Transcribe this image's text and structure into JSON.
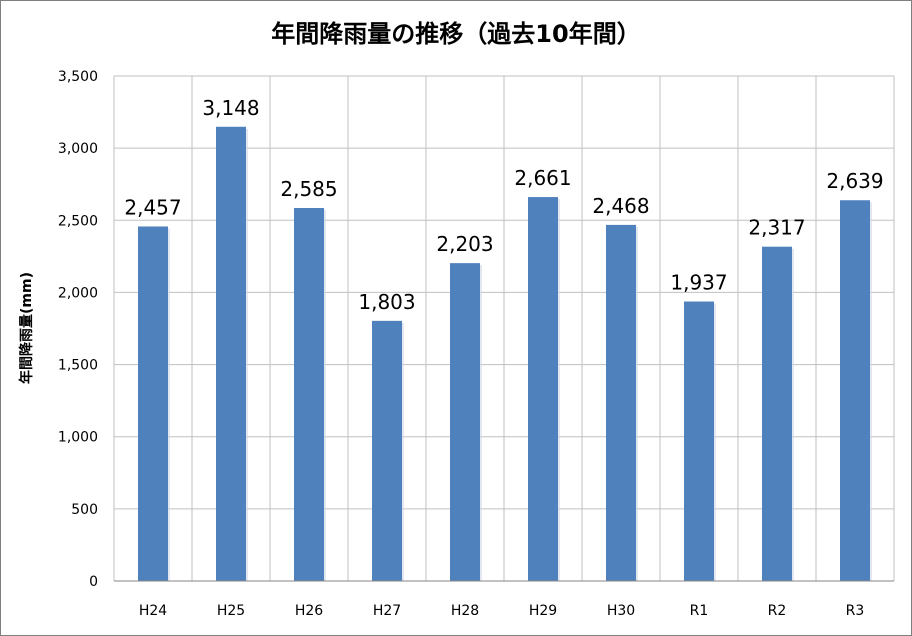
{
  "chart_data": {
    "type": "bar",
    "title": "年間降雨量の推移（過去10年間）",
    "ylabel": "年間降雨量(mm)",
    "xlabel": "",
    "categories": [
      "H24",
      "H25",
      "H26",
      "H27",
      "H28",
      "H29",
      "H30",
      "R1",
      "R2",
      "R3"
    ],
    "values": [
      2457,
      3148,
      2585,
      1803,
      2203,
      2661,
      2468,
      1937,
      2317,
      2639
    ],
    "value_labels": [
      "2,457",
      "3,148",
      "2,585",
      "1,803",
      "2,203",
      "2,661",
      "2,468",
      "1,937",
      "2,317",
      "2,639"
    ],
    "ylim": [
      0,
      3500
    ],
    "yticks": [
      0,
      500,
      1000,
      1500,
      2000,
      2500,
      3000,
      3500
    ],
    "ytick_labels": [
      "0",
      "500",
      "1,000",
      "1,500",
      "2,000",
      "2,500",
      "3,000",
      "3,500"
    ],
    "grid": true,
    "legend": "none",
    "bar_color": "#4f81bd",
    "grid_color": "#c0c0c0"
  }
}
